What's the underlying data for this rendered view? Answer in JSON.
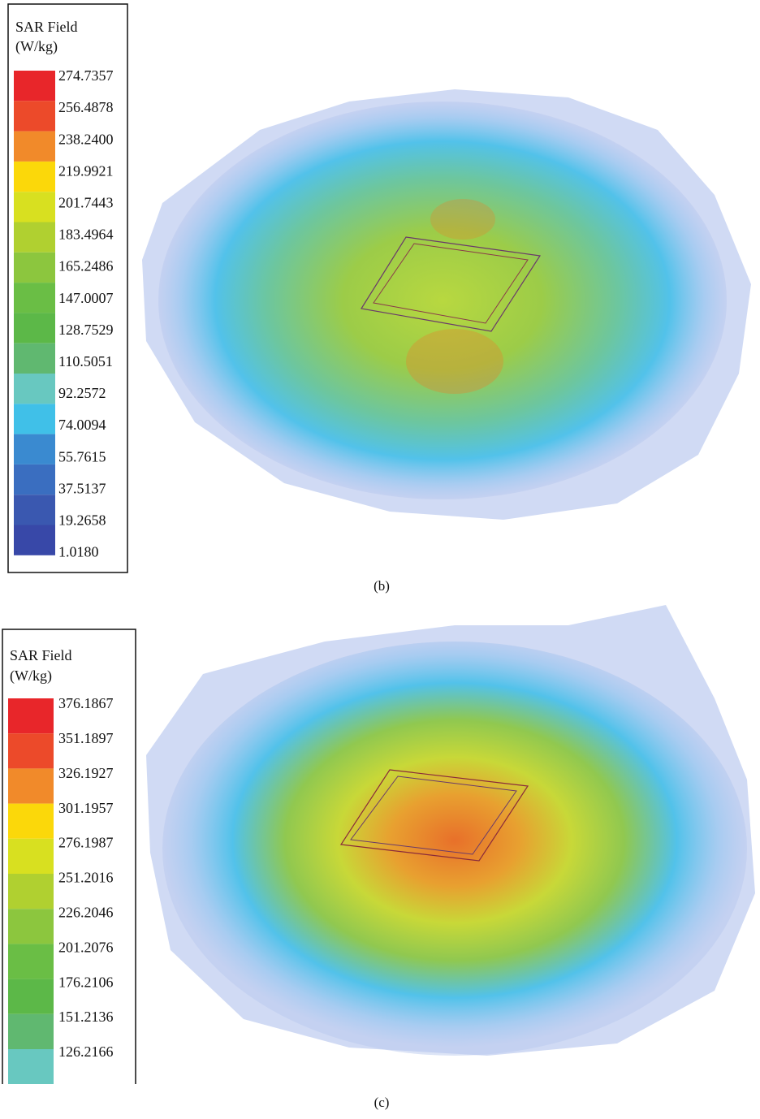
{
  "panels": [
    {
      "legend": {
        "title": "SAR Field",
        "unit": "(W/kg)",
        "labels": [
          "274.7357",
          "256.4878",
          "238.2400",
          "219.9921",
          "201.7443",
          "183.4964",
          "165.2486",
          "147.0007",
          "128.7529",
          "110.5051",
          "92.2572",
          "74.0094",
          "55.7615",
          "37.5137",
          "19.2658",
          "1.0180"
        ]
      },
      "caption": "(b)"
    },
    {
      "legend": {
        "title": "SAR Field",
        "unit": "(W/kg)",
        "labels": [
          "376.1867",
          "351.1897",
          "326.1927",
          "301.1957",
          "276.1987",
          "251.2016",
          "226.2046",
          "201.2076",
          "176.2106",
          "151.2136",
          "126.2166"
        ]
      },
      "caption": "(c)"
    }
  ]
}
